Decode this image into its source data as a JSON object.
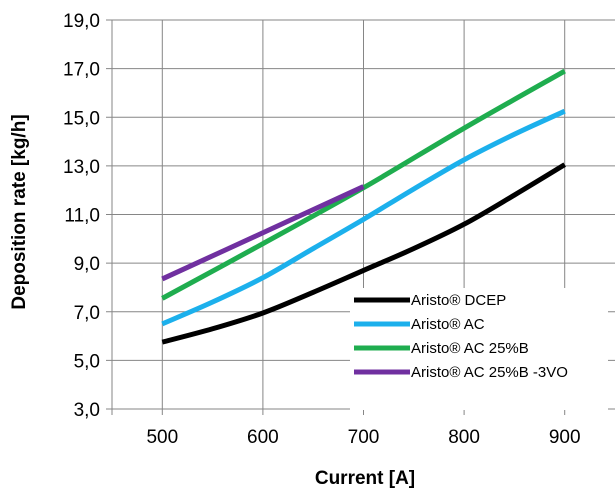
{
  "chart_data": {
    "type": "line",
    "title": "",
    "xlabel": "Current [A]",
    "ylabel": "Deposition rate [kg/h]",
    "xlim": [
      450,
      950
    ],
    "ylim": [
      3.0,
      19.0
    ],
    "x_ticks": [
      500,
      600,
      700,
      800,
      900
    ],
    "x_tick_labels": [
      "500",
      "600",
      "700",
      "800",
      "900"
    ],
    "y_ticks": [
      3.0,
      5.0,
      7.0,
      9.0,
      11.0,
      13.0,
      15.0,
      17.0,
      19.0
    ],
    "y_tick_labels": [
      "3,0",
      "5,0",
      "7,0",
      "9,0",
      "11,0",
      "13,0",
      "15,0",
      "17,0",
      "19,0"
    ],
    "grid": true,
    "legend_position": "bottom-right",
    "series": [
      {
        "name": "Aristo® DCEP",
        "color": "#000000",
        "x": [
          500,
          550,
          600,
          650,
          700,
          750,
          800,
          850,
          900
        ],
        "y": [
          5.75,
          6.3,
          6.95,
          7.8,
          8.7,
          9.6,
          10.6,
          11.8,
          13.05
        ]
      },
      {
        "name": "Aristo® AC",
        "color": "#1CB0EC",
        "x": [
          500,
          550,
          600,
          650,
          700,
          750,
          800,
          850,
          900
        ],
        "y": [
          6.5,
          7.4,
          8.4,
          9.6,
          10.8,
          12.05,
          13.25,
          14.3,
          15.25
        ]
      },
      {
        "name": "Aristo® AC 25%B",
        "color": "#1FAD4F",
        "x": [
          500,
          600,
          700,
          800,
          900
        ],
        "y": [
          7.55,
          9.8,
          12.1,
          14.55,
          16.9
        ]
      },
      {
        "name": "Aristo® AC 25%B -3VO",
        "color": "#7030A0",
        "x": [
          500,
          600,
          700
        ],
        "y": [
          8.35,
          10.25,
          12.15
        ]
      }
    ]
  }
}
